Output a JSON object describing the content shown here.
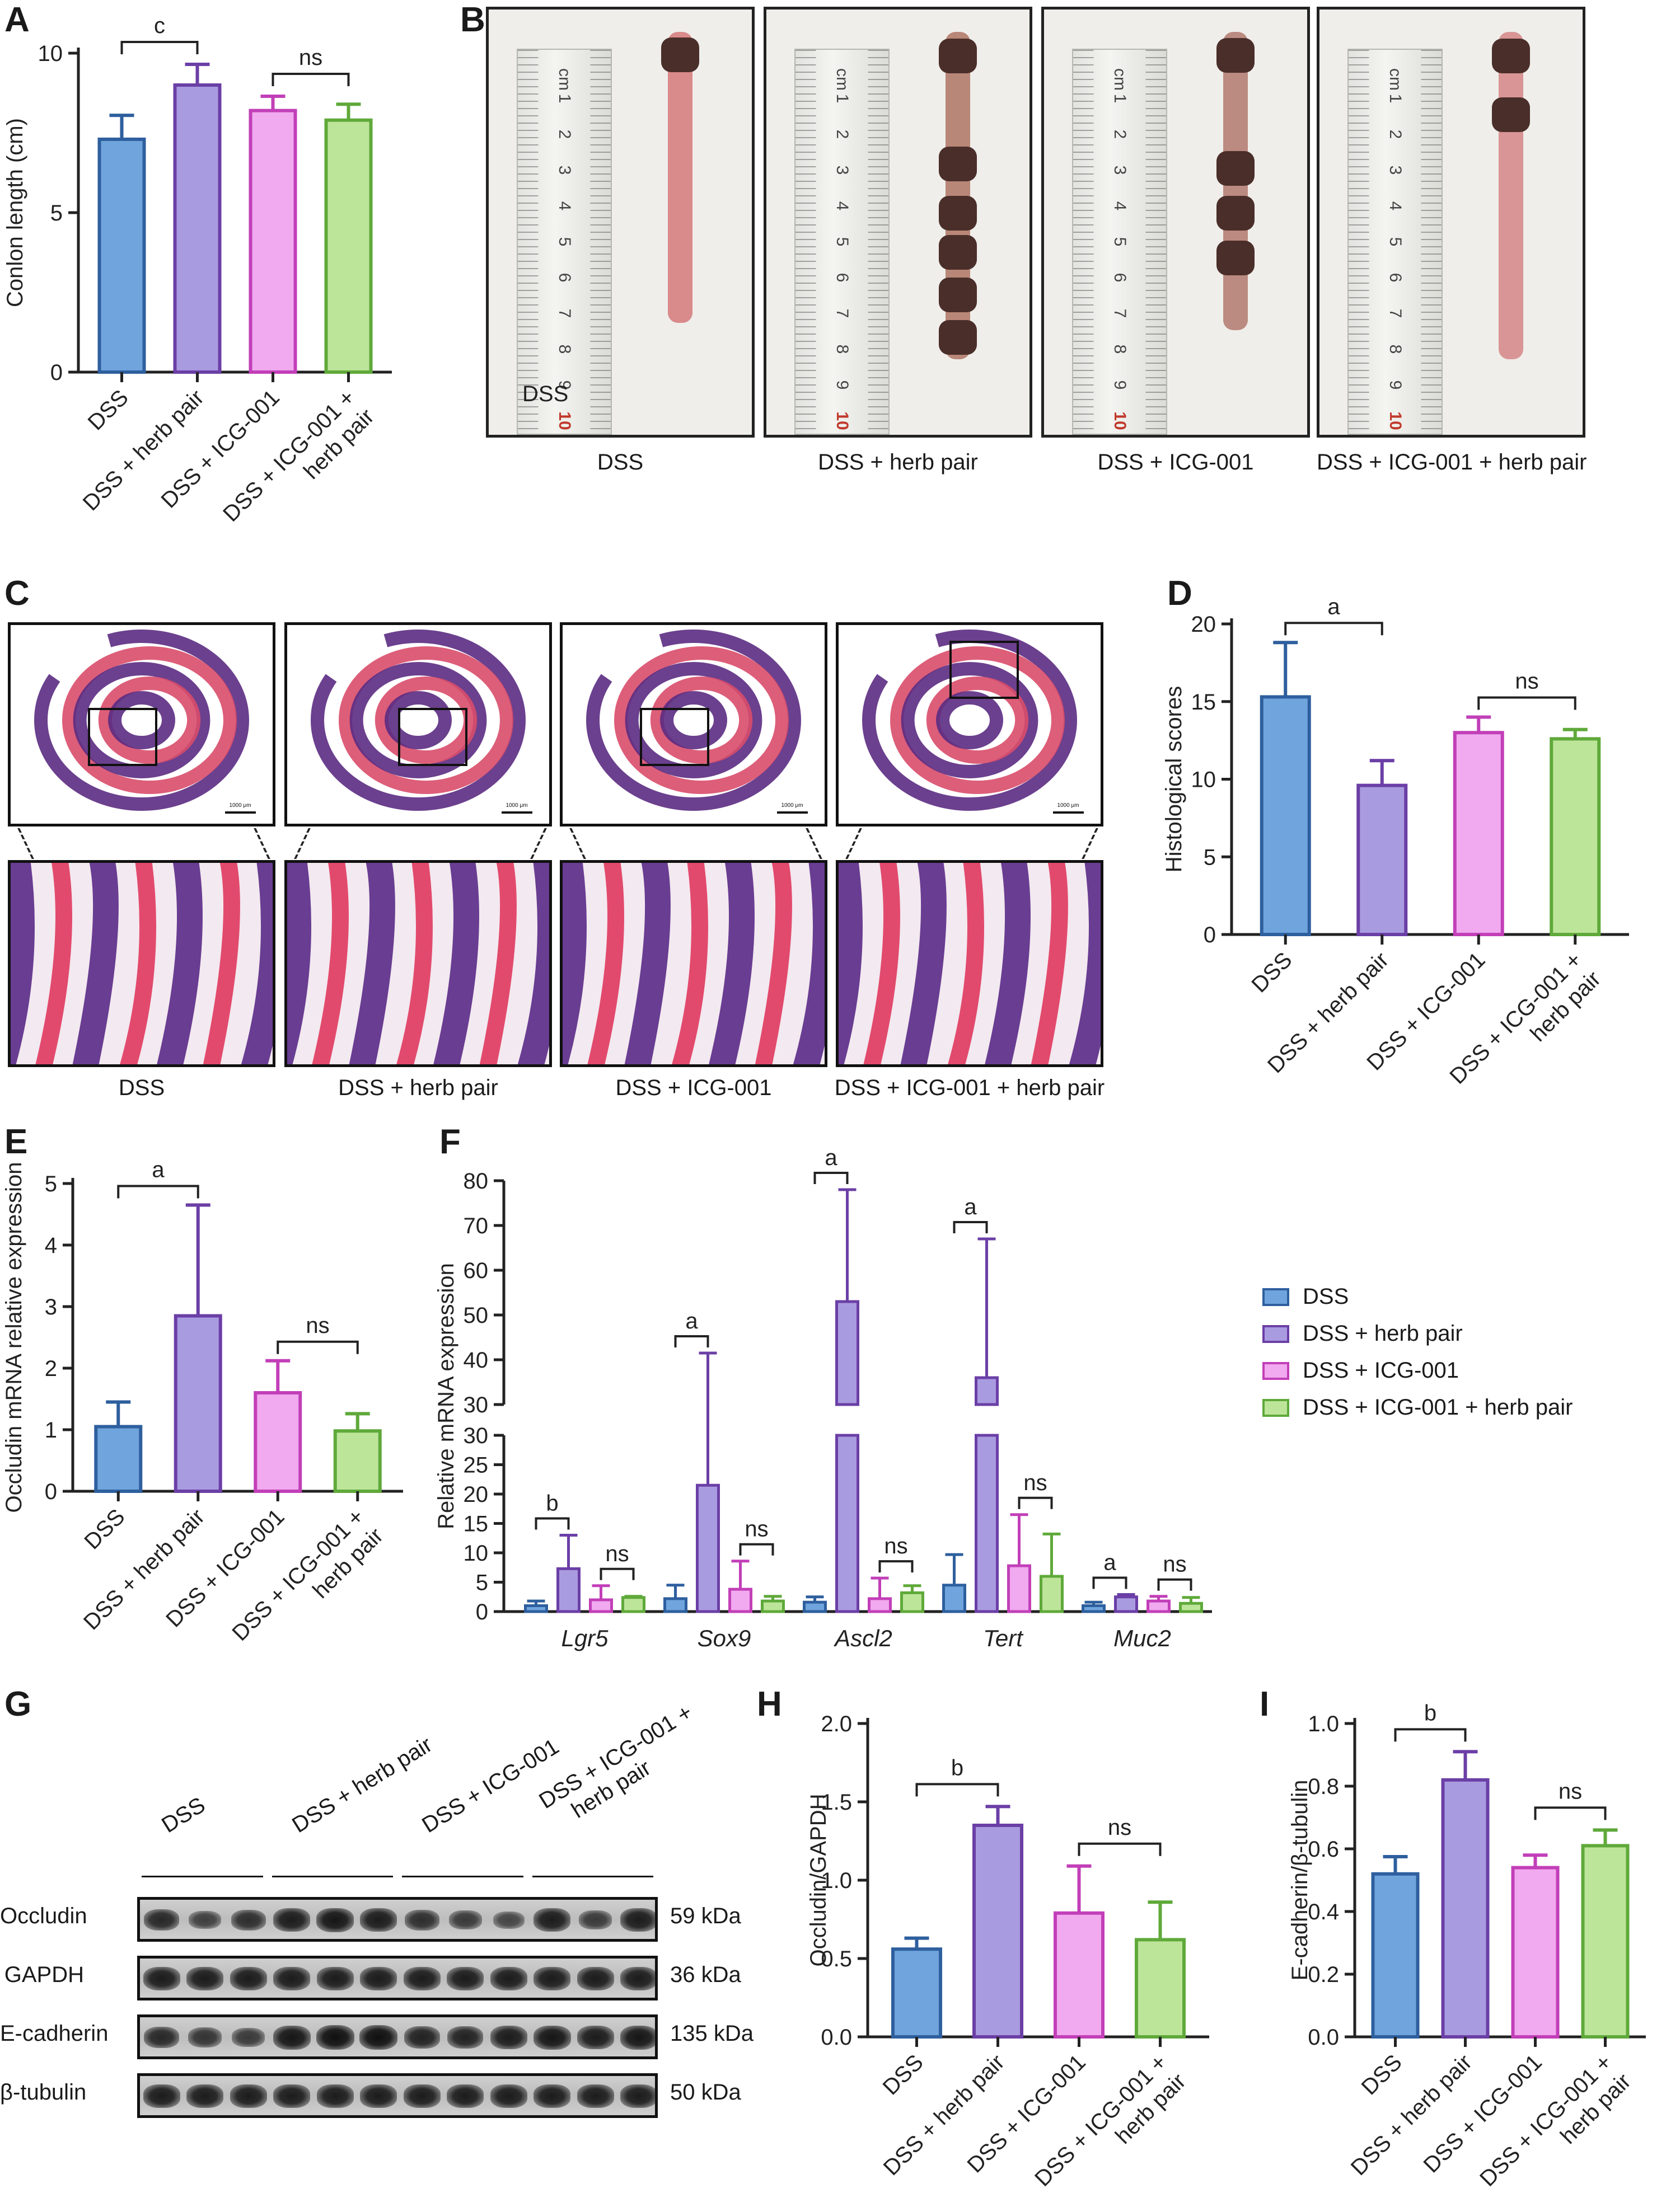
{
  "groups": [
    "DSS",
    "DSS + herb pair",
    "DSS + ICG-001",
    "DSS + ICG-001 + herb pair"
  ],
  "group_ticks": [
    "DSS",
    "DSS + herb pair",
    "DSS + ICG-001",
    "DSS + ICG-001 +\nherb pair"
  ],
  "colors": {
    "DSS": {
      "fill": "#6fa5dc",
      "stroke": "#2e5f9e"
    },
    "DSS + herb pair": {
      "fill": "#a99be0",
      "stroke": "#6b3fa6"
    },
    "DSS + ICG-001": {
      "fill": "#f1a9ef",
      "stroke": "#c23fb8"
    },
    "DSS + ICG-001 + herb pair": {
      "fill": "#bde59a",
      "stroke": "#5fa93a"
    }
  },
  "panel_labels": {
    "A": "A",
    "B": "B",
    "C": "C",
    "D": "D",
    "E": "E",
    "F": "F",
    "G": "G",
    "H": "H",
    "I": "I"
  },
  "panel_b": {
    "captions": [
      "DSS",
      "DSS + herb pair",
      "DSS + ICG-001",
      "DSS + ICG-001 + herb pair"
    ],
    "photo_tag": "DSS",
    "ruler_unit": "cm",
    "ruler_numbers": [
      "1",
      "2",
      "3",
      "4",
      "5",
      "6",
      "7",
      "8",
      "9",
      "10"
    ]
  },
  "panel_c": {
    "captions": [
      "DSS",
      "DSS + herb pair",
      "DSS + ICG-001",
      "DSS + ICG-001 + herb pair"
    ],
    "scale_bar": "1000 μm"
  },
  "panel_f": {
    "legend": [
      "DSS",
      "DSS + herb pair",
      "DSS + ICG-001",
      "DSS + ICG-001 + herb pair"
    ]
  },
  "panel_g": {
    "groups": [
      "DSS",
      "DSS + herb pair",
      "DSS + ICG-001",
      "DSS + ICG-001 +\nherb pair"
    ],
    "rows": [
      {
        "name": "Occludin",
        "kda": "59 kDa",
        "intensity": [
          0.75,
          0.55,
          0.7,
          0.85,
          0.9,
          0.85,
          0.7,
          0.6,
          0.5,
          0.85,
          0.6,
          0.85
        ]
      },
      {
        "name": "GAPDH",
        "kda": "36 kDa",
        "intensity": [
          0.85,
          0.85,
          0.85,
          0.85,
          0.85,
          0.85,
          0.85,
          0.85,
          0.85,
          0.85,
          0.85,
          0.85
        ]
      },
      {
        "name": "E-cadherin",
        "kda": "135 kDa",
        "intensity": [
          0.75,
          0.65,
          0.6,
          0.9,
          0.95,
          0.95,
          0.8,
          0.8,
          0.85,
          0.9,
          0.85,
          0.9
        ]
      },
      {
        "name": "β-tubulin",
        "kda": "50 kDa",
        "intensity": [
          0.85,
          0.85,
          0.85,
          0.85,
          0.85,
          0.85,
          0.85,
          0.85,
          0.85,
          0.85,
          0.85,
          0.85
        ]
      }
    ]
  },
  "chart_data": [
    {
      "id": "A",
      "type": "bar",
      "categories": [
        "DSS",
        "DSS + herb pair",
        "DSS + ICG-001",
        "DSS + ICG-001 + herb pair"
      ],
      "values": [
        7.3,
        9.0,
        8.2,
        7.9
      ],
      "errors": [
        0.75,
        0.65,
        0.45,
        0.5
      ],
      "ylabel": "Conlon length (cm)",
      "ylim": [
        0,
        10
      ],
      "yticks": [
        0,
        5,
        10
      ],
      "brackets": [
        {
          "from": 0,
          "to": 1,
          "label": "c"
        },
        {
          "from": 2,
          "to": 3,
          "label": "ns"
        }
      ]
    },
    {
      "id": "D",
      "type": "bar",
      "categories": [
        "DSS",
        "DSS + herb pair",
        "DSS + ICG-001",
        "DSS + ICG-001 + herb pair"
      ],
      "values": [
        15.3,
        9.6,
        13.0,
        12.6
      ],
      "errors": [
        3.5,
        1.6,
        1.0,
        0.6
      ],
      "ylabel": "Histological scores",
      "ylim": [
        0,
        20
      ],
      "yticks": [
        0,
        5,
        10,
        15,
        20
      ],
      "brackets": [
        {
          "from": 0,
          "to": 1,
          "label": "a"
        },
        {
          "from": 2,
          "to": 3,
          "label": "ns"
        }
      ]
    },
    {
      "id": "E",
      "type": "bar",
      "categories": [
        "DSS",
        "DSS + herb pair",
        "DSS + ICG-001",
        "DSS + ICG-001 + herb pair"
      ],
      "values": [
        1.05,
        2.85,
        1.6,
        0.98
      ],
      "errors": [
        0.4,
        1.8,
        0.52,
        0.28
      ],
      "ylabel": "Occludin mRNA relative expression",
      "ylim": [
        0,
        5
      ],
      "yticks": [
        0,
        1,
        2,
        3,
        4,
        5
      ],
      "brackets": [
        {
          "from": 0,
          "to": 1,
          "label": "a"
        },
        {
          "from": 2,
          "to": 3,
          "label": "ns"
        }
      ]
    },
    {
      "id": "F",
      "type": "bar",
      "categories": [
        "Lgr5",
        "Sox9",
        "Ascl2",
        "Tert",
        "Muc2"
      ],
      "series": [
        {
          "name": "DSS",
          "values": [
            1.0,
            2.2,
            1.6,
            4.5,
            1.0
          ],
          "errors": [
            0.8,
            2.3,
            0.9,
            5.2,
            0.6
          ]
        },
        {
          "name": "DSS + herb pair",
          "values": [
            7.3,
            21.5,
            53.0,
            36.0,
            2.5
          ],
          "errors": [
            5.7,
            20.0,
            25.0,
            31.0,
            0.4
          ]
        },
        {
          "name": "DSS + ICG-001",
          "values": [
            2.0,
            3.8,
            2.2,
            7.8,
            1.8
          ],
          "errors": [
            2.4,
            4.8,
            3.5,
            8.7,
            0.8
          ]
        },
        {
          "name": "DSS + ICG-001 + herb pair",
          "values": [
            2.4,
            1.8,
            3.2,
            6.0,
            1.4
          ],
          "errors": [
            0.2,
            0.8,
            1.2,
            7.2,
            1.0
          ]
        }
      ],
      "ylabel": "Relative mRNA expression",
      "yaxis_break": {
        "lower": [
          0,
          30
        ],
        "upper": [
          30,
          80
        ]
      },
      "yticks_lower": [
        0,
        5,
        10,
        15,
        20,
        25,
        30
      ],
      "yticks_upper": [
        30,
        40,
        50,
        60,
        70,
        80
      ],
      "brackets": [
        {
          "category": 0,
          "from": 0,
          "to": 1,
          "label": "b"
        },
        {
          "category": 0,
          "from": 2,
          "to": 3,
          "label": "ns"
        },
        {
          "category": 1,
          "from": 0,
          "to": 1,
          "label": "a"
        },
        {
          "category": 1,
          "from": 2,
          "to": 3,
          "label": "ns"
        },
        {
          "category": 2,
          "from": 0,
          "to": 1,
          "label": "a"
        },
        {
          "category": 2,
          "from": 2,
          "to": 3,
          "label": "ns"
        },
        {
          "category": 3,
          "from": 0,
          "to": 1,
          "label": "a"
        },
        {
          "category": 3,
          "from": 2,
          "to": 3,
          "label": "ns"
        },
        {
          "category": 4,
          "from": 0,
          "to": 1,
          "label": "a"
        },
        {
          "category": 4,
          "from": 2,
          "to": 3,
          "label": "ns"
        }
      ]
    },
    {
      "id": "H",
      "type": "bar",
      "categories": [
        "DSS",
        "DSS + herb pair",
        "DSS + ICG-001",
        "DSS + ICG-001 + herb pair"
      ],
      "values": [
        0.56,
        1.35,
        0.79,
        0.62
      ],
      "errors": [
        0.07,
        0.12,
        0.3,
        0.24
      ],
      "ylabel": "Occludin/GAPDH",
      "ylim": [
        0,
        2.0
      ],
      "yticks": [
        "0.0",
        "0.5",
        "1.0",
        "1.5",
        "2.0"
      ],
      "brackets": [
        {
          "from": 0,
          "to": 1,
          "label": "b"
        },
        {
          "from": 2,
          "to": 3,
          "label": "ns"
        }
      ]
    },
    {
      "id": "I",
      "type": "bar",
      "categories": [
        "DSS",
        "DSS + herb pair",
        "DSS + ICG-001",
        "DSS + ICG-001 + herb pair"
      ],
      "values": [
        0.52,
        0.82,
        0.54,
        0.61
      ],
      "errors": [
        0.055,
        0.09,
        0.04,
        0.05
      ],
      "ylabel": "E-cadherin/β-tubulin",
      "ylim": [
        0,
        1.0
      ],
      "yticks": [
        "0.0",
        "0.2",
        "0.4",
        "0.6",
        "0.8",
        "1.0"
      ],
      "brackets": [
        {
          "from": 0,
          "to": 1,
          "label": "b"
        },
        {
          "from": 2,
          "to": 3,
          "label": "ns"
        }
      ]
    }
  ]
}
